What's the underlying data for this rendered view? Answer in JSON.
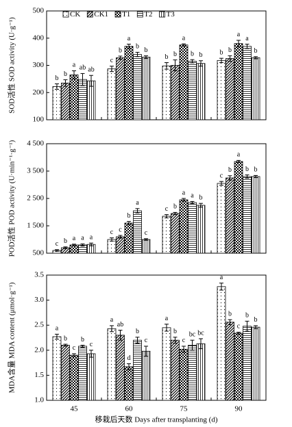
{
  "chart_data": [
    {
      "type": "bar",
      "y_label": "SOD活性 SOD activity (U·g⁻¹)",
      "ylim": [
        100,
        500
      ],
      "yticks": [
        100,
        200,
        300,
        400,
        500
      ],
      "series": [
        {
          "name": "CK",
          "color": "#000000",
          "pattern": "dots",
          "values": [
            222,
            287,
            298,
            318
          ],
          "errors": [
            10,
            10,
            12,
            8
          ],
          "labels": [
            "b",
            "c",
            "b",
            "b"
          ]
        },
        {
          "name": "CK1",
          "color": "#000000",
          "pattern": "diagonal",
          "values": [
            235,
            328,
            300,
            325
          ],
          "errors": [
            12,
            6,
            20,
            10
          ],
          "labels": [
            "b",
            "b",
            "b",
            "b"
          ]
        },
        {
          "name": "T1",
          "color": "#000000",
          "pattern": "checker",
          "values": [
            265,
            370,
            375,
            380
          ],
          "errors": [
            15,
            8,
            4,
            12
          ],
          "labels": [
            "a",
            "a",
            "a",
            "a"
          ]
        },
        {
          "name": "T2",
          "color": "#000000",
          "pattern": "horizontal",
          "values": [
            248,
            340,
            315,
            370
          ],
          "errors": [
            22,
            8,
            6,
            8
          ],
          "labels": [
            "ab",
            "b",
            "b",
            "a"
          ]
        },
        {
          "name": "T3",
          "color": "#000000",
          "pattern": "vertical",
          "values": [
            243,
            330,
            307,
            328
          ],
          "errors": [
            20,
            5,
            10,
            4
          ],
          "labels": [
            "ab",
            "b",
            "b",
            "b"
          ]
        }
      ]
    },
    {
      "type": "bar",
      "y_label": "POD活性 POD activity (U·min⁻¹·g⁻¹)",
      "ylim": [
        500,
        4500
      ],
      "yticks": [
        500,
        {
          "value": 1500,
          "label": "1 500"
        },
        {
          "value": 2500,
          "label": "2 500"
        },
        {
          "value": 3500,
          "label": "3 500"
        },
        {
          "value": 4500,
          "label": "4 500"
        }
      ],
      "series": [
        {
          "values": [
            600,
            1000,
            1850,
            3050
          ],
          "errors": [
            30,
            60,
            60,
            70
          ],
          "labels": [
            "c",
            "c",
            "c",
            "c"
          ]
        },
        {
          "values": [
            700,
            1100,
            1950,
            3250
          ],
          "errors": [
            30,
            50,
            40,
            80
          ],
          "labels": [
            "b",
            "c",
            "b",
            "b"
          ]
        },
        {
          "values": [
            800,
            1600,
            2450,
            3850
          ],
          "errors": [
            30,
            60,
            50,
            40
          ],
          "labels": [
            "a",
            "b",
            "a",
            "a"
          ]
        },
        {
          "values": [
            800,
            2050,
            2350,
            3300
          ],
          "errors": [
            40,
            80,
            40,
            60
          ],
          "labels": [
            "a",
            "a",
            "a",
            "b"
          ]
        },
        {
          "values": [
            820,
            1000,
            2250,
            3300
          ],
          "errors": [
            50,
            30,
            70,
            40
          ],
          "labels": [
            "a",
            "c",
            "b",
            "b"
          ]
        }
      ]
    },
    {
      "type": "bar",
      "y_label": "MDA含量 MDA content (μmol·g⁻¹)",
      "x_label": "移栽后天数 Days after transplanting (d)",
      "categories": [
        "45",
        "60",
        "75",
        "90"
      ],
      "ylim": [
        1.0,
        3.5
      ],
      "yticks": [
        {
          "value": 1.0,
          "label": "1.0"
        },
        1.5,
        {
          "value": 2.0,
          "label": "2.0"
        },
        2.5,
        {
          "value": 3.0,
          "label": "3.0"
        },
        3.5
      ],
      "series": [
        {
          "values": [
            2.27,
            2.43,
            2.45,
            3.27
          ],
          "errors": [
            0.05,
            0.06,
            0.07,
            0.07
          ],
          "labels": [
            "a",
            "a",
            "a",
            "a"
          ]
        },
        {
          "values": [
            2.1,
            2.3,
            2.2,
            2.56
          ],
          "errors": [
            0.02,
            0.1,
            0.06,
            0.05
          ],
          "labels": [
            "b",
            "ab",
            "b",
            "b"
          ]
        },
        {
          "values": [
            1.9,
            1.67,
            2.02,
            2.34
          ],
          "errors": [
            0.03,
            0.06,
            0.06,
            0.02
          ],
          "labels": [
            "c",
            "d",
            "c",
            "c"
          ]
        },
        {
          "values": [
            2.08,
            2.2,
            2.1,
            2.48
          ],
          "errors": [
            0.02,
            0.06,
            0.1,
            0.1
          ],
          "labels": [
            "b",
            "b",
            "bc",
            "b"
          ]
        },
        {
          "values": [
            1.93,
            1.98,
            2.13,
            2.46
          ],
          "errors": [
            0.07,
            0.1,
            0.1,
            0.03
          ],
          "labels": [
            "c",
            "c",
            "bc",
            "b"
          ]
        }
      ]
    }
  ]
}
